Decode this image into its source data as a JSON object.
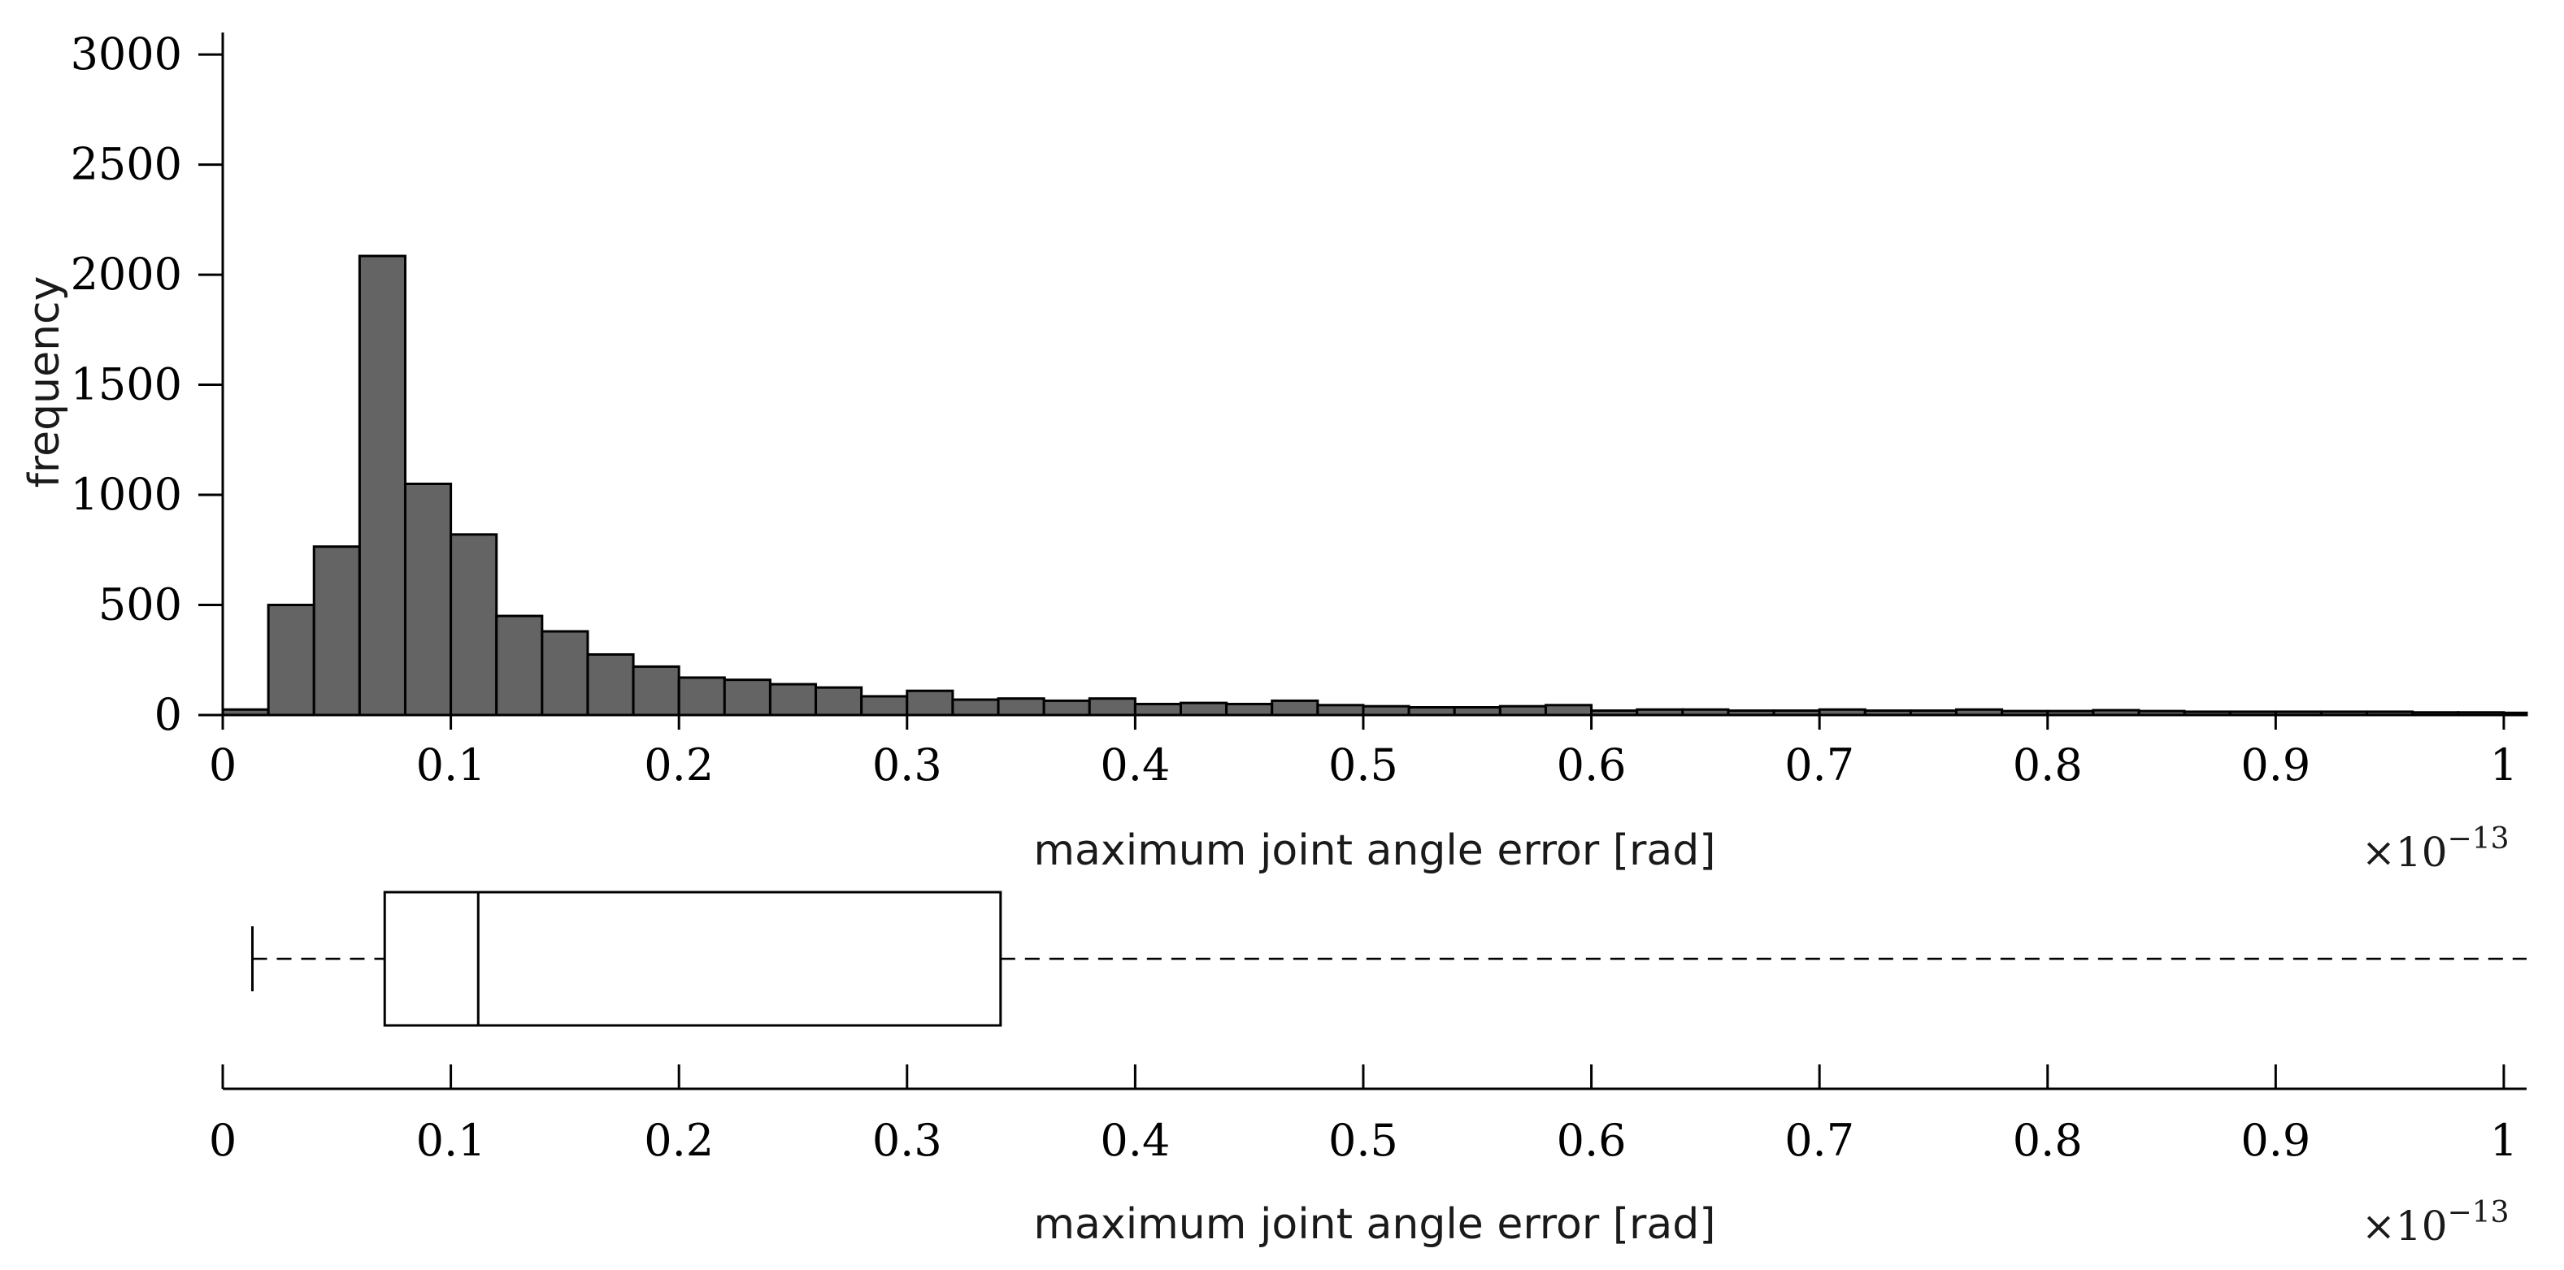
{
  "chart_data": [
    {
      "type": "bar",
      "subtype": "histogram",
      "xlabel": "maximum joint angle error [rad]",
      "ylabel": "frequency",
      "x_scale_label": "×10",
      "x_scale_exponent": "−13",
      "xlim": [
        0,
        1.01
      ],
      "ylim": [
        0,
        3100
      ],
      "xticks": [
        "0",
        "0.1",
        "0.2",
        "0.3",
        "0.4",
        "0.5",
        "0.6",
        "0.7",
        "0.8",
        "0.9",
        "1"
      ],
      "yticks": [
        "0",
        "500",
        "1000",
        "1500",
        "2000",
        "2500",
        "3000"
      ],
      "bin_width": 0.02,
      "bin_start": 0,
      "values": [
        25,
        500,
        765,
        2085,
        1050,
        820,
        450,
        380,
        275,
        220,
        170,
        160,
        140,
        125,
        85,
        110,
        70,
        75,
        65,
        75,
        50,
        55,
        50,
        65,
        45,
        40,
        35,
        35,
        40,
        45,
        20,
        25,
        25,
        20,
        20,
        25,
        20,
        20,
        25,
        18,
        18,
        22,
        18,
        15,
        15,
        15,
        15,
        15,
        12,
        12,
        10
      ]
    },
    {
      "type": "boxplot",
      "xlabel": "maximum joint angle error [rad]",
      "x_scale_label": "×10",
      "x_scale_exponent": "−13",
      "xlim": [
        0,
        1.01
      ],
      "xticks": [
        "0",
        "0.1",
        "0.2",
        "0.3",
        "0.4",
        "0.5",
        "0.6",
        "0.7",
        "0.8",
        "0.9",
        "1"
      ],
      "whisker_low": 0.013,
      "q1": 0.071,
      "median": 0.112,
      "q3": 0.341,
      "whisker_high": 1.01
    }
  ]
}
